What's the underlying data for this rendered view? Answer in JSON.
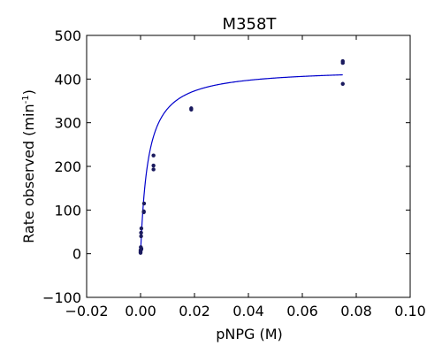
{
  "chart_data": {
    "type": "scatter",
    "title": "M358T",
    "xlabel": "pNPG (M)",
    "ylabel_main": "Rate observed (min",
    "ylabel_sup": "-1",
    "ylabel_end": ")",
    "xlim": [
      -0.02,
      0.1
    ],
    "ylim": [
      -100,
      500
    ],
    "xticks": [
      -0.02,
      0.0,
      0.02,
      0.04,
      0.06,
      0.08,
      0.1
    ],
    "xtick_labels": [
      "−0.02",
      "0.00",
      "0.02",
      "0.04",
      "0.06",
      "0.08",
      "0.10"
    ],
    "yticks": [
      -100,
      0,
      100,
      200,
      300,
      400,
      500
    ],
    "ytick_labels": [
      "−100",
      "0",
      "100",
      "200",
      "300",
      "400",
      "500"
    ],
    "grid": false,
    "colors": {
      "points": "#1a1a5e",
      "fit": "#0000cc"
    },
    "series": [
      {
        "kind": "points",
        "x": [
          0.0,
          0.0,
          0.0,
          0.0001,
          0.0002,
          0.0002,
          0.0003,
          0.0003,
          0.0003,
          0.0012,
          0.0012,
          0.0013,
          0.0048,
          0.0048,
          0.0048,
          0.0188,
          0.0188,
          0.075,
          0.075,
          0.075
        ],
        "y": [
          2,
          5,
          8,
          15,
          40,
          48,
          58,
          12,
          10,
          95,
          97,
          115,
          225,
          202,
          193,
          333,
          330,
          441,
          437,
          389
        ]
      },
      {
        "kind": "fit",
        "model": "michaelis-menten",
        "vmax": 425,
        "km": 0.0028
      }
    ]
  }
}
